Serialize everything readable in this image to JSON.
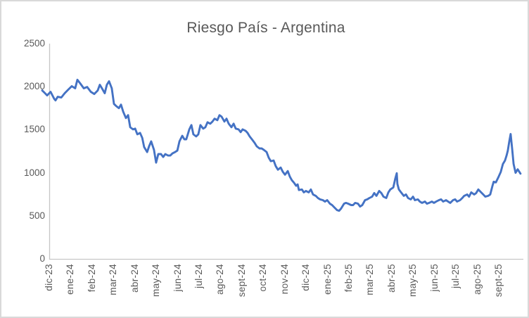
{
  "chart_data": {
    "type": "line",
    "title": "Riesgo País - Argentina",
    "xlabel": "",
    "ylabel": "",
    "ylim": [
      0,
      2500
    ],
    "y_ticks": [
      0,
      500,
      1000,
      1500,
      2000,
      2500
    ],
    "x_tick_labels": [
      "dic-23",
      "ene-24",
      "feb-24",
      "mar-24",
      "abr-24",
      "may-24",
      "jun-24",
      "jul-24",
      "ago-24",
      "sept-24",
      "oct-24",
      "nov-24",
      "dic-24",
      "ene-25",
      "feb-25",
      "mar-25",
      "abr-25",
      "may-25",
      "jun-25",
      "jul-25",
      "ago-25",
      "sept-25"
    ],
    "grid": false,
    "legend": "none",
    "colors": {
      "line": "#4472C4",
      "axis": "#C6C6C6",
      "labels": "#595959",
      "title": "#595959",
      "chart_border": "#D9D9D9"
    },
    "series": [
      {
        "name": "Riesgo País - Argentina",
        "x_unit": "months_from_dic23_tick",
        "points": [
          [
            -0.36,
            1956
          ],
          [
            -0.23,
            1924
          ],
          [
            -0.13,
            1899
          ],
          [
            0.03,
            1940
          ],
          [
            0.2,
            1858
          ],
          [
            0.26,
            1841
          ],
          [
            0.36,
            1882
          ],
          [
            0.53,
            1874
          ],
          [
            0.69,
            1924
          ],
          [
            0.85,
            1965
          ],
          [
            1.02,
            2006
          ],
          [
            1.18,
            1981
          ],
          [
            1.28,
            2080
          ],
          [
            1.41,
            2039
          ],
          [
            1.58,
            1981
          ],
          [
            1.74,
            1997
          ],
          [
            1.91,
            1940
          ],
          [
            2.07,
            1915
          ],
          [
            2.23,
            1956
          ],
          [
            2.33,
            2022
          ],
          [
            2.43,
            1981
          ],
          [
            2.56,
            1924
          ],
          [
            2.66,
            2022
          ],
          [
            2.76,
            2063
          ],
          [
            2.89,
            1981
          ],
          [
            2.99,
            1800
          ],
          [
            3.09,
            1776
          ],
          [
            3.22,
            1751
          ],
          [
            3.32,
            1792
          ],
          [
            3.42,
            1710
          ],
          [
            3.55,
            1636
          ],
          [
            3.65,
            1669
          ],
          [
            3.75,
            1529
          ],
          [
            3.88,
            1504
          ],
          [
            3.98,
            1513
          ],
          [
            4.08,
            1447
          ],
          [
            4.21,
            1463
          ],
          [
            4.31,
            1406
          ],
          [
            4.4,
            1299
          ],
          [
            4.54,
            1241
          ],
          [
            4.63,
            1307
          ],
          [
            4.73,
            1365
          ],
          [
            4.86,
            1266
          ],
          [
            4.96,
            1118
          ],
          [
            5.06,
            1217
          ],
          [
            5.19,
            1217
          ],
          [
            5.29,
            1184
          ],
          [
            5.39,
            1217
          ],
          [
            5.52,
            1200
          ],
          [
            5.62,
            1200
          ],
          [
            5.72,
            1225
          ],
          [
            5.85,
            1241
          ],
          [
            5.95,
            1258
          ],
          [
            6.05,
            1365
          ],
          [
            6.18,
            1430
          ],
          [
            6.28,
            1389
          ],
          [
            6.37,
            1389
          ],
          [
            6.51,
            1504
          ],
          [
            6.61,
            1554
          ],
          [
            6.7,
            1447
          ],
          [
            6.83,
            1422
          ],
          [
            6.93,
            1447
          ],
          [
            7.03,
            1554
          ],
          [
            7.16,
            1513
          ],
          [
            7.26,
            1529
          ],
          [
            7.36,
            1587
          ],
          [
            7.49,
            1570
          ],
          [
            7.59,
            1595
          ],
          [
            7.69,
            1628
          ],
          [
            7.82,
            1611
          ],
          [
            7.92,
            1669
          ],
          [
            8.02,
            1652
          ],
          [
            8.15,
            1595
          ],
          [
            8.25,
            1628
          ],
          [
            8.35,
            1570
          ],
          [
            8.48,
            1529
          ],
          [
            8.58,
            1570
          ],
          [
            8.68,
            1513
          ],
          [
            8.81,
            1504
          ],
          [
            8.91,
            1472
          ],
          [
            9.0,
            1504
          ],
          [
            9.14,
            1488
          ],
          [
            9.23,
            1463
          ],
          [
            9.33,
            1422
          ],
          [
            9.46,
            1381
          ],
          [
            9.56,
            1348
          ],
          [
            9.66,
            1307
          ],
          [
            9.79,
            1283
          ],
          [
            9.89,
            1283
          ],
          [
            9.99,
            1266
          ],
          [
            10.12,
            1241
          ],
          [
            10.22,
            1176
          ],
          [
            10.32,
            1135
          ],
          [
            10.45,
            1143
          ],
          [
            10.55,
            1077
          ],
          [
            10.65,
            1036
          ],
          [
            10.78,
            1061
          ],
          [
            10.88,
            1011
          ],
          [
            10.98,
            978
          ],
          [
            11.11,
            1020
          ],
          [
            11.21,
            954
          ],
          [
            11.3,
            913
          ],
          [
            11.4,
            885
          ],
          [
            11.5,
            850
          ],
          [
            11.57,
            865
          ],
          [
            11.63,
            800
          ],
          [
            11.77,
            806
          ],
          [
            11.86,
            773
          ],
          [
            11.96,
            789
          ],
          [
            12.09,
            773
          ],
          [
            12.19,
            806
          ],
          [
            12.29,
            748
          ],
          [
            12.42,
            732
          ],
          [
            12.52,
            707
          ],
          [
            12.62,
            691
          ],
          [
            12.75,
            682
          ],
          [
            12.85,
            666
          ],
          [
            12.95,
            682
          ],
          [
            13.08,
            641
          ],
          [
            13.18,
            625
          ],
          [
            13.28,
            600
          ],
          [
            13.41,
            567
          ],
          [
            13.51,
            559
          ],
          [
            13.6,
            584
          ],
          [
            13.74,
            641
          ],
          [
            13.83,
            650
          ],
          [
            13.93,
            641
          ],
          [
            14.07,
            625
          ],
          [
            14.16,
            625
          ],
          [
            14.26,
            650
          ],
          [
            14.39,
            641
          ],
          [
            14.49,
            608
          ],
          [
            14.59,
            625
          ],
          [
            14.72,
            682
          ],
          [
            14.82,
            691
          ],
          [
            14.92,
            707
          ],
          [
            15.05,
            723
          ],
          [
            15.15,
            765
          ],
          [
            15.25,
            732
          ],
          [
            15.38,
            789
          ],
          [
            15.48,
            765
          ],
          [
            15.58,
            723
          ],
          [
            15.71,
            707
          ],
          [
            15.81,
            773
          ],
          [
            15.9,
            806
          ],
          [
            16.04,
            830
          ],
          [
            16.13,
            929
          ],
          [
            16.2,
            995
          ],
          [
            16.23,
            871
          ],
          [
            16.3,
            806
          ],
          [
            16.4,
            773
          ],
          [
            16.53,
            732
          ],
          [
            16.63,
            748
          ],
          [
            16.73,
            707
          ],
          [
            16.86,
            691
          ],
          [
            16.96,
            723
          ],
          [
            17.05,
            682
          ],
          [
            17.19,
            691
          ],
          [
            17.28,
            666
          ],
          [
            17.38,
            650
          ],
          [
            17.52,
            666
          ],
          [
            17.61,
            641
          ],
          [
            17.71,
            650
          ],
          [
            17.84,
            666
          ],
          [
            17.94,
            650
          ],
          [
            18.04,
            666
          ],
          [
            18.17,
            682
          ],
          [
            18.27,
            691
          ],
          [
            18.37,
            666
          ],
          [
            18.5,
            682
          ],
          [
            18.6,
            666
          ],
          [
            18.7,
            650
          ],
          [
            18.83,
            682
          ],
          [
            18.93,
            691
          ],
          [
            19.02,
            666
          ],
          [
            19.16,
            682
          ],
          [
            19.26,
            707
          ],
          [
            19.35,
            732
          ],
          [
            19.49,
            748
          ],
          [
            19.58,
            723
          ],
          [
            19.68,
            773
          ],
          [
            19.82,
            748
          ],
          [
            19.91,
            765
          ],
          [
            20.01,
            806
          ],
          [
            20.14,
            773
          ],
          [
            20.24,
            748
          ],
          [
            20.34,
            723
          ],
          [
            20.47,
            732
          ],
          [
            20.57,
            748
          ],
          [
            20.67,
            846
          ],
          [
            20.73,
            896
          ],
          [
            20.83,
            888
          ],
          [
            20.96,
            954
          ],
          [
            21.06,
            1011
          ],
          [
            21.16,
            1102
          ],
          [
            21.26,
            1143
          ],
          [
            21.33,
            1200
          ],
          [
            21.39,
            1258
          ],
          [
            21.46,
            1365
          ],
          [
            21.52,
            1450
          ],
          [
            21.59,
            1283
          ],
          [
            21.66,
            1102
          ],
          [
            21.75,
            1000
          ],
          [
            21.85,
            1041
          ],
          [
            21.98,
            990
          ]
        ]
      }
    ]
  }
}
